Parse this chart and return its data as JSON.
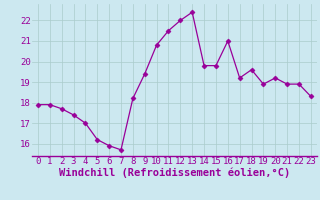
{
  "x": [
    0,
    1,
    2,
    3,
    4,
    5,
    6,
    7,
    8,
    9,
    10,
    11,
    12,
    13,
    14,
    15,
    16,
    17,
    18,
    19,
    20,
    21,
    22,
    23
  ],
  "y": [
    17.9,
    17.9,
    17.7,
    17.4,
    17.0,
    16.2,
    15.9,
    15.7,
    18.2,
    19.4,
    20.8,
    21.5,
    22.0,
    22.4,
    19.8,
    19.8,
    21.0,
    19.2,
    19.6,
    18.9,
    19.2,
    18.9,
    18.9,
    18.3
  ],
  "line_color": "#990099",
  "marker": "D",
  "marker_size": 2.5,
  "bg_color": "#cce8f0",
  "grid_color": "#aacccc",
  "label_color": "#990099",
  "xlabel": "Windchill (Refroidissement éolien,°C)",
  "tick_fontsize": 6.5,
  "xlabel_fontsize": 7.5,
  "xlim": [
    -0.5,
    23.5
  ],
  "ylim": [
    15.4,
    22.8
  ],
  "yticks": [
    16,
    17,
    18,
    19,
    20,
    21,
    22
  ],
  "xticks": [
    0,
    1,
    2,
    3,
    4,
    5,
    6,
    7,
    8,
    9,
    10,
    11,
    12,
    13,
    14,
    15,
    16,
    17,
    18,
    19,
    20,
    21,
    22,
    23
  ]
}
